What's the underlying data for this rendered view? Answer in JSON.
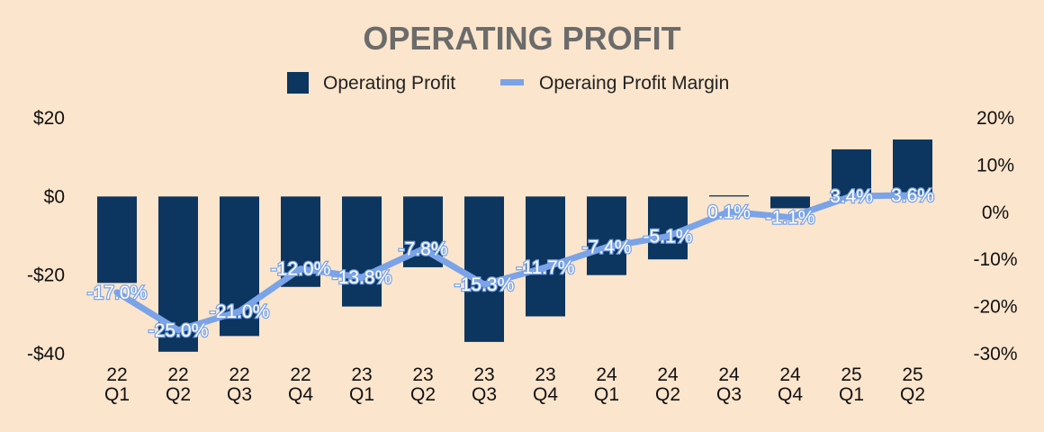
{
  "chart_data": {
    "type": "bar",
    "title": "OPERATING PROFIT",
    "categories": [
      "22 Q1",
      "22 Q2",
      "22 Q3",
      "22 Q4",
      "23 Q1",
      "23 Q2",
      "23 Q3",
      "23 Q4",
      "24 Q1",
      "24 Q2",
      "24 Q3",
      "24 Q4",
      "25 Q1",
      "25 Q2"
    ],
    "category_lines": [
      [
        "22",
        "Q1"
      ],
      [
        "22",
        "Q2"
      ],
      [
        "22",
        "Q3"
      ],
      [
        "22",
        "Q4"
      ],
      [
        "23",
        "Q1"
      ],
      [
        "23",
        "Q2"
      ],
      [
        "23",
        "Q3"
      ],
      [
        "23",
        "Q4"
      ],
      [
        "24",
        "Q1"
      ],
      [
        "24",
        "Q2"
      ],
      [
        "24",
        "Q3"
      ],
      [
        "24",
        "Q4"
      ],
      [
        "25",
        "Q1"
      ],
      [
        "25",
        "Q2"
      ]
    ],
    "series": [
      {
        "name": "Operating Profit",
        "type": "bar",
        "axis": "left",
        "color": "#0c365f",
        "values": [
          -22,
          -39.5,
          -35.5,
          -23,
          -28,
          -18,
          -37,
          -30.5,
          -20,
          -16,
          0.3,
          -3,
          12,
          14.5
        ]
      },
      {
        "name": "Operaing Profit Margin",
        "type": "line",
        "axis": "right",
        "color": "#7aa3e8",
        "values": [
          -17.0,
          -25.0,
          -21.0,
          -12.0,
          -13.8,
          -7.8,
          -15.3,
          -11.7,
          -7.4,
          -5.1,
          0.1,
          -1.1,
          3.4,
          3.6
        ],
        "labels": [
          "-17.0%",
          "-25.0%",
          "-21.0%",
          "-12.0%",
          "-13.8%",
          "-7.8%",
          "-15.3%",
          "-11.7%",
          "-7.4%",
          "-5.1%",
          "0.1%",
          "-1.1%",
          "3.4%",
          "3.6%"
        ]
      }
    ],
    "y_left": {
      "min": -40,
      "max": 20,
      "ticks": [
        20,
        0,
        -20,
        -40
      ],
      "tick_labels": [
        "$20",
        "$0",
        "-$20",
        "-$40"
      ]
    },
    "y_right": {
      "min": -30,
      "max": 20,
      "ticks": [
        20,
        10,
        0,
        -10,
        -20,
        -30
      ],
      "tick_labels": [
        "20%",
        "10%",
        "0%",
        "-10%",
        "-20%",
        "-30%"
      ]
    },
    "legend": {
      "position": "top-center",
      "items": [
        "Operating Profit",
        "Operaing Profit Margin"
      ]
    },
    "grid": false,
    "background": "#fbe5cc"
  }
}
